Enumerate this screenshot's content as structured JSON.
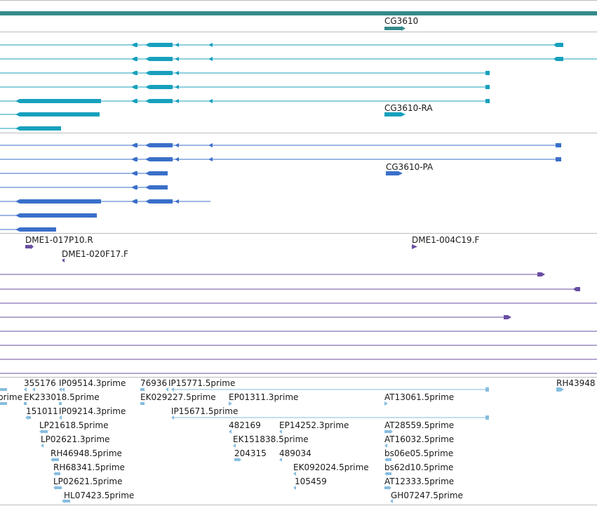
{
  "colors": {
    "gene": "#358a8a",
    "transcript": "#17a0bd",
    "protein": "#3a6fc9",
    "clone": "#6a4ea3",
    "est": "#86bde0",
    "separator": "#bdbdbd",
    "label": "#1a1a1a"
  },
  "tracks": {
    "gene": {
      "label": "CG3610"
    },
    "transcripts": {
      "label": "CG3610-RA"
    },
    "proteins": {
      "label": "CG3610-PA"
    },
    "clones": {
      "labels": [
        "DME1-017P10.R",
        "DME1-020F17.F",
        "DME1-004C19.F"
      ]
    },
    "ests": {
      "labels": [
        "355176",
        "IP09514.3prime",
        "76936",
        "IP15771.5prime",
        "RH43948",
        "prime",
        "EK233018.5prime",
        "EK029227.5prime",
        "EP01311.3prime",
        "AT13061.5prime",
        "151011",
        "IP09214.3prime",
        "IP15671.5prime",
        "LP21618.5prime",
        "482169",
        "EP14252.3prime",
        "AT28559.5prime",
        "LP02621.3prime",
        "EK151838.5prime",
        "AT16032.5prime",
        "RH46948.5prime",
        "204315",
        "489034",
        "bs06e05.5prime",
        "RH68341.5prime",
        "EK092024.5prime",
        "bs62d10.5prime",
        "LP02621.5prime",
        "105459",
        "AT12333.5prime",
        "HL07423.5prime",
        "GH07247.5prime"
      ]
    }
  }
}
